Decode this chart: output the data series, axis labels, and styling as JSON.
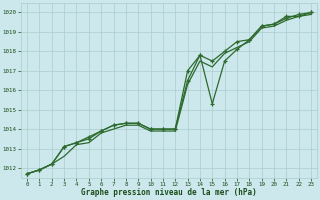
{
  "x": [
    0,
    1,
    2,
    3,
    4,
    5,
    6,
    7,
    8,
    9,
    10,
    11,
    12,
    13,
    14,
    15,
    16,
    17,
    18,
    19,
    20,
    21,
    22,
    23
  ],
  "line1": [
    1011.7,
    1011.9,
    1012.2,
    1013.1,
    1013.3,
    1013.6,
    1013.9,
    1014.2,
    1014.3,
    1014.3,
    1014.0,
    1014.0,
    1014.0,
    1017.0,
    1017.8,
    1015.3,
    1017.5,
    1018.1,
    1018.6,
    1019.3,
    1019.4,
    1019.8,
    1019.8,
    1020.0
  ],
  "line2": [
    1011.7,
    1011.9,
    1012.2,
    1013.1,
    1013.3,
    1013.5,
    1013.9,
    1014.2,
    1014.3,
    1014.3,
    1014.0,
    1014.0,
    1014.0,
    1016.5,
    1017.8,
    1017.5,
    1018.0,
    1018.5,
    1018.6,
    1019.3,
    1019.4,
    1019.7,
    1019.9,
    1020.0
  ],
  "line3": [
    1011.7,
    1011.9,
    1012.2,
    1012.6,
    1013.2,
    1013.3,
    1013.8,
    1014.0,
    1014.2,
    1014.2,
    1013.9,
    1013.9,
    1013.9,
    1016.3,
    1017.5,
    1017.2,
    1017.9,
    1018.2,
    1018.5,
    1019.2,
    1019.3,
    1019.6,
    1019.8,
    1019.9
  ],
  "bg_color": "#cce8ec",
  "grid_color": "#aacccc",
  "line_color": "#2d6a2d",
  "marker_color": "#2d6a2d",
  "xlabel": "Graphe pression niveau de la mer (hPa)",
  "xlabel_color": "#1a4d1a",
  "tick_color": "#1a4d1a",
  "ylim": [
    1011.5,
    1020.5
  ],
  "xlim": [
    -0.5,
    23.5
  ],
  "yticks": [
    1012,
    1013,
    1014,
    1015,
    1016,
    1017,
    1018,
    1019,
    1020
  ],
  "xticks": [
    0,
    1,
    2,
    3,
    4,
    5,
    6,
    7,
    8,
    9,
    10,
    11,
    12,
    13,
    14,
    15,
    16,
    17,
    18,
    19,
    20,
    21,
    22,
    23
  ]
}
